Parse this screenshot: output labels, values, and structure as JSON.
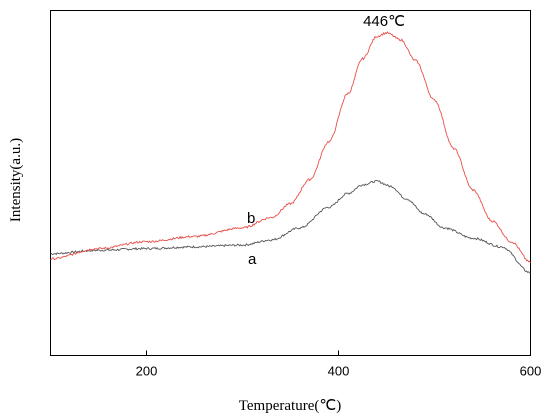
{
  "chart_data": {
    "type": "line",
    "title": "",
    "xlabel": "Temperature(℃)",
    "ylabel": "Intensity(a.u.)",
    "xlim": [
      100,
      600
    ],
    "ylim": [
      0,
      1
    ],
    "xticks": [
      200,
      400,
      600
    ],
    "x_tick_labels": [
      "200",
      "400",
      "600"
    ],
    "y_tick_labels_shown": false,
    "grid": false,
    "legend": "none",
    "annotations": [
      {
        "text": "446℃",
        "x": 446
      }
    ],
    "series": [
      {
        "name": "a",
        "color": "#555555",
        "x": [
          100,
          150,
          200,
          250,
          300,
          330,
          360,
          390,
          410,
          425,
          440,
          455,
          470,
          490,
          510,
          540,
          570,
          600
        ],
        "y": [
          0.295,
          0.305,
          0.31,
          0.315,
          0.32,
          0.335,
          0.37,
          0.43,
          0.47,
          0.495,
          0.505,
          0.49,
          0.455,
          0.41,
          0.37,
          0.34,
          0.315,
          0.24
        ]
      },
      {
        "name": "b",
        "color": "#e8504a",
        "x": [
          100,
          150,
          200,
          250,
          300,
          330,
          350,
          370,
          390,
          410,
          425,
          440,
          450,
          465,
          480,
          500,
          520,
          540,
          560,
          580,
          600
        ],
        "y": [
          0.28,
          0.31,
          0.33,
          0.345,
          0.37,
          0.4,
          0.44,
          0.51,
          0.62,
          0.76,
          0.86,
          0.925,
          0.935,
          0.915,
          0.855,
          0.74,
          0.6,
          0.48,
          0.39,
          0.33,
          0.27
        ]
      }
    ]
  }
}
